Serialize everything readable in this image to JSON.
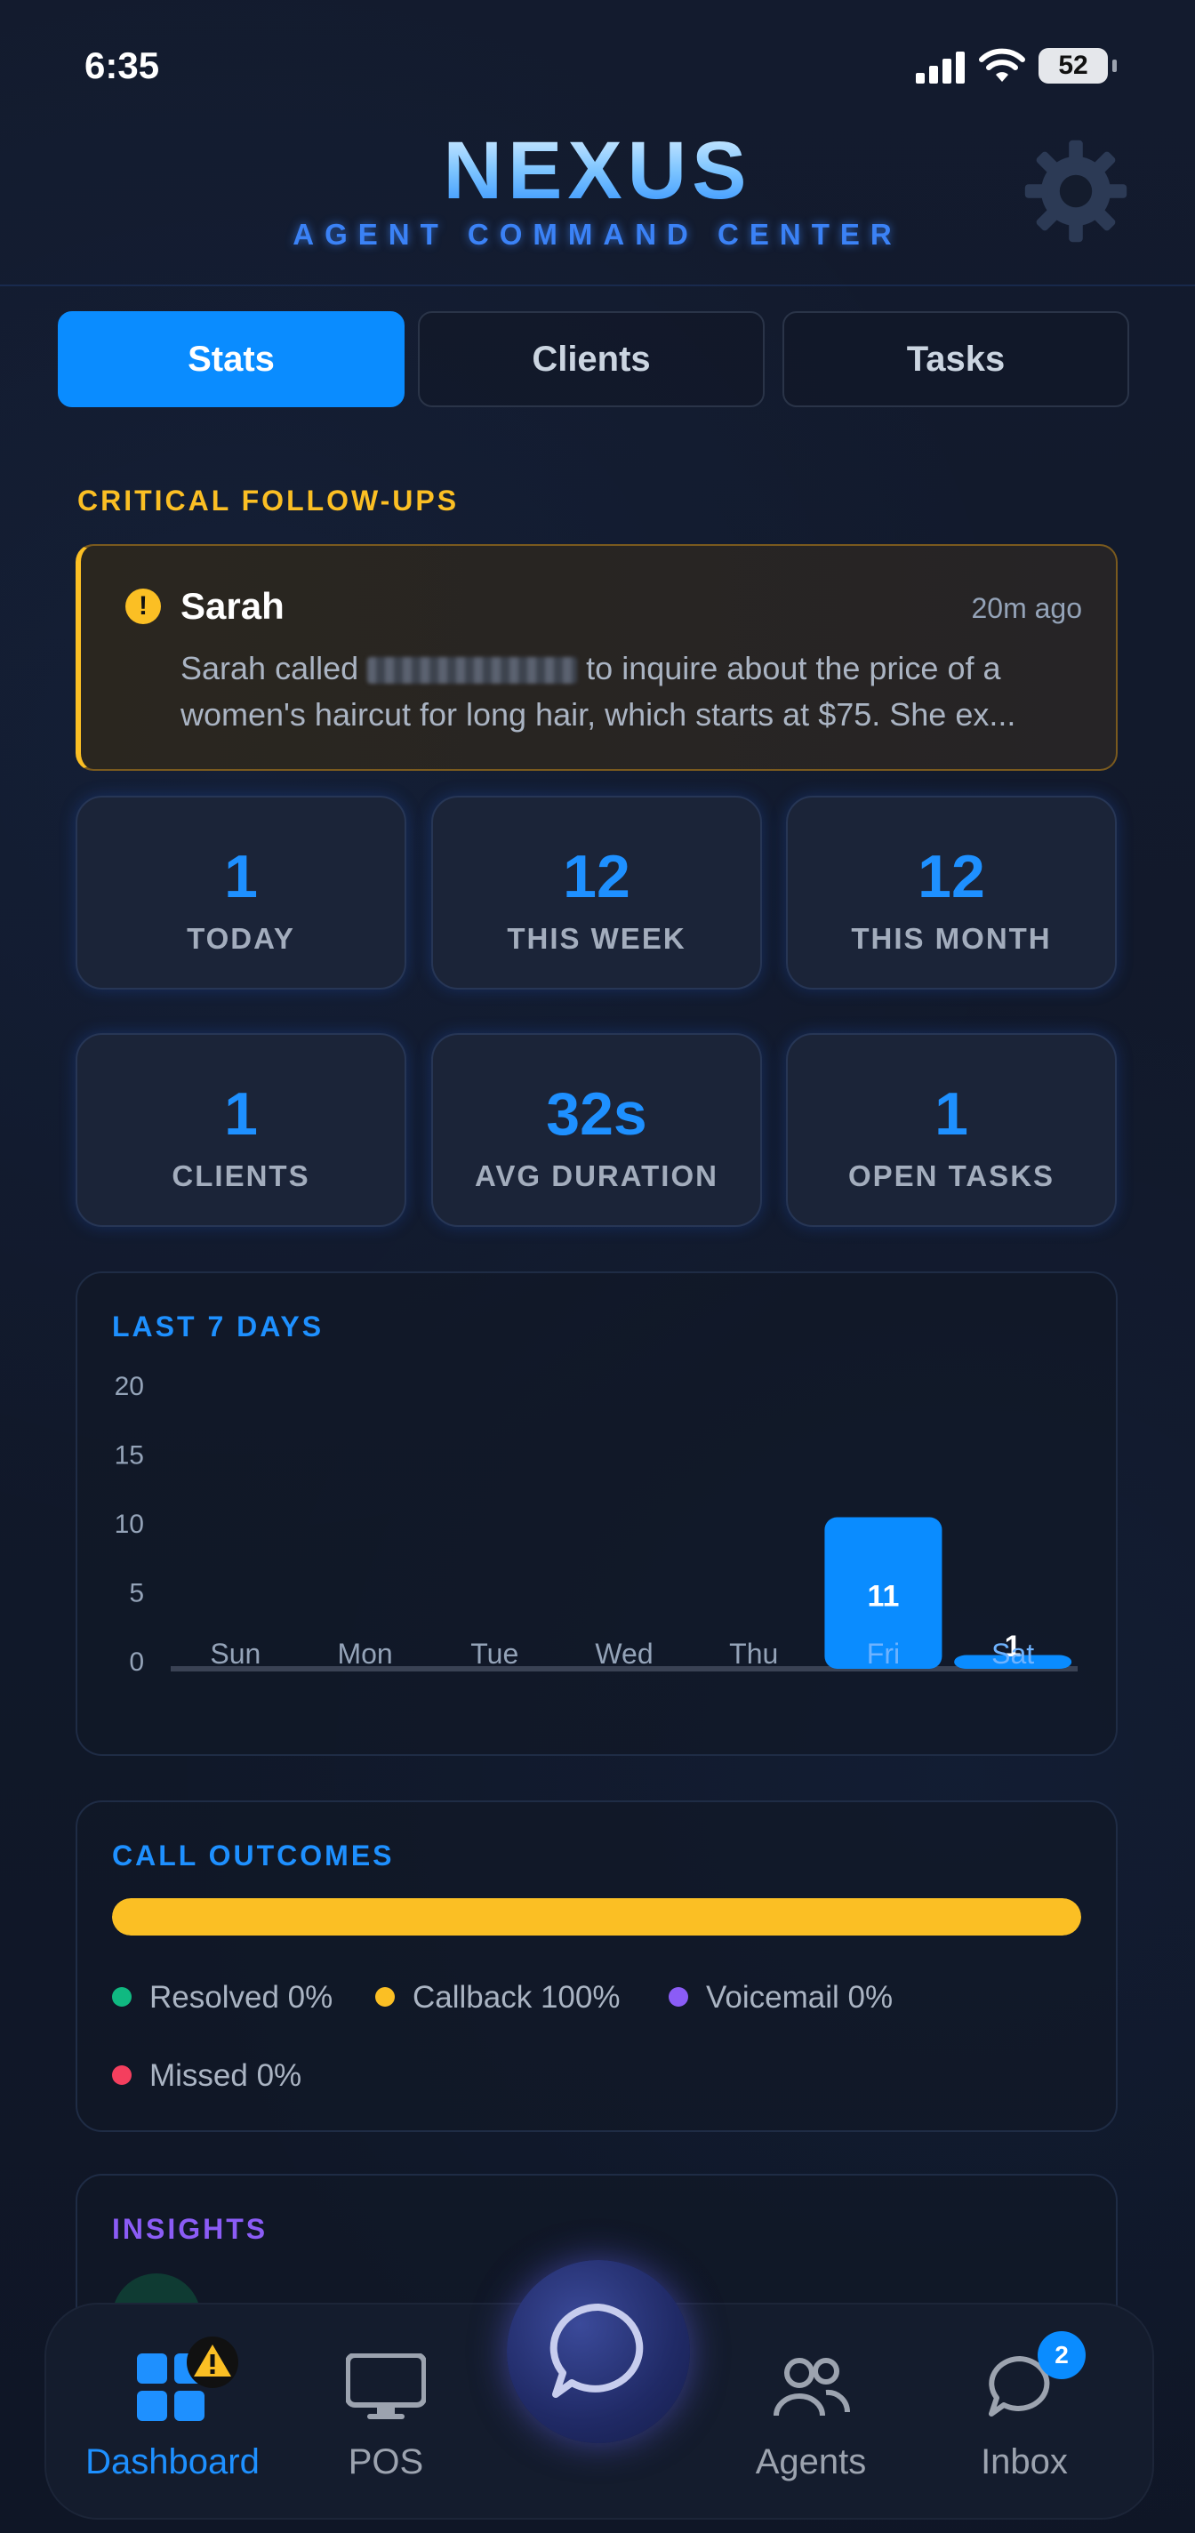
{
  "status_bar": {
    "time": "6:35",
    "battery": "52"
  },
  "header": {
    "logo": "NEXUS",
    "subtitle": "AGENT COMMAND CENTER"
  },
  "tabs": [
    {
      "label": "Stats",
      "active": true
    },
    {
      "label": "Clients",
      "active": false
    },
    {
      "label": "Tasks",
      "active": false
    }
  ],
  "followups": {
    "title": "CRITICAL FOLLOW-UPS",
    "item": {
      "name": "Sarah",
      "time": "20m ago",
      "text_before": "Sarah called",
      "text_after": "to inquire about the price of a women's haircut for long hair, which starts at $75. She ex..."
    }
  },
  "stats": [
    {
      "value": "1",
      "label": "TODAY"
    },
    {
      "value": "12",
      "label": "THIS WEEK"
    },
    {
      "value": "12",
      "label": "THIS MONTH"
    },
    {
      "value": "1",
      "label": "CLIENTS"
    },
    {
      "value": "32s",
      "label": "AVG DURATION"
    },
    {
      "value": "1",
      "label": "OPEN TASKS"
    }
  ],
  "chart_data": {
    "type": "bar",
    "title": "LAST 7 DAYS",
    "categories": [
      "Sun",
      "Mon",
      "Tue",
      "Wed",
      "Thu",
      "Fri",
      "Sat"
    ],
    "values": [
      0,
      0,
      0,
      0,
      0,
      11,
      1
    ],
    "yticks": [
      "0",
      "5",
      "10",
      "15",
      "20"
    ],
    "ylim": [
      0,
      20
    ],
    "bar_color": "#0a8cff"
  },
  "call_outcomes": {
    "title": "CALL OUTCOMES",
    "bar_color": "#fbbf24",
    "callback_fraction": 1.0,
    "legend": [
      {
        "label": "Resolved 0%",
        "color": "#10b981"
      },
      {
        "label": "Callback 100%",
        "color": "#fbbf24"
      },
      {
        "label": "Voicemail 0%",
        "color": "#8b5cf6"
      },
      {
        "label": "Missed 0%",
        "color": "#f43f5e"
      }
    ]
  },
  "insights": {
    "title": "INSIGHTS"
  },
  "nav": {
    "items": [
      {
        "label": "Dashboard",
        "icon": "dashboard-grid-icon",
        "active": true
      },
      {
        "label": "POS",
        "icon": "monitor-icon"
      },
      {
        "label": "Agents",
        "icon": "people-icon"
      },
      {
        "label": "Inbox",
        "icon": "chat-bubbles-icon",
        "badge": "2"
      }
    ],
    "center_icon": "chat-bubble-icon"
  }
}
